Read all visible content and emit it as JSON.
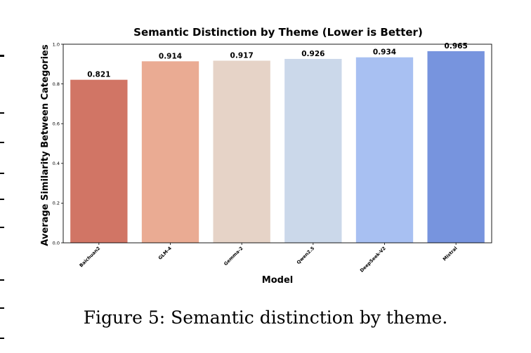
{
  "chart_data": {
    "type": "bar",
    "title": "Semantic Distinction by Theme (Lower is Better)",
    "xlabel": "Model",
    "ylabel": "Average Similarity Between Categories",
    "categories": [
      "Baichuan2",
      "GLM-4",
      "Gemma-2",
      "Qwen2.5",
      "DeepSeek-V2",
      "Mistral"
    ],
    "values": [
      0.821,
      0.914,
      0.917,
      0.926,
      0.934,
      0.965
    ],
    "value_labels": [
      "0.821",
      "0.914",
      "0.917",
      "0.926",
      "0.934",
      "0.965"
    ],
    "ylim": [
      0,
      1.0
    ],
    "yticks": [
      "0.0",
      "0.2",
      "0.4",
      "0.6",
      "0.8",
      "1.0"
    ],
    "grid": false,
    "colors": [
      "#d17565",
      "#eaab93",
      "#e6d3c7",
      "#cbd8ea",
      "#a8c0f2",
      "#7794de"
    ]
  },
  "caption": "Figure 5: Semantic distinction by theme."
}
